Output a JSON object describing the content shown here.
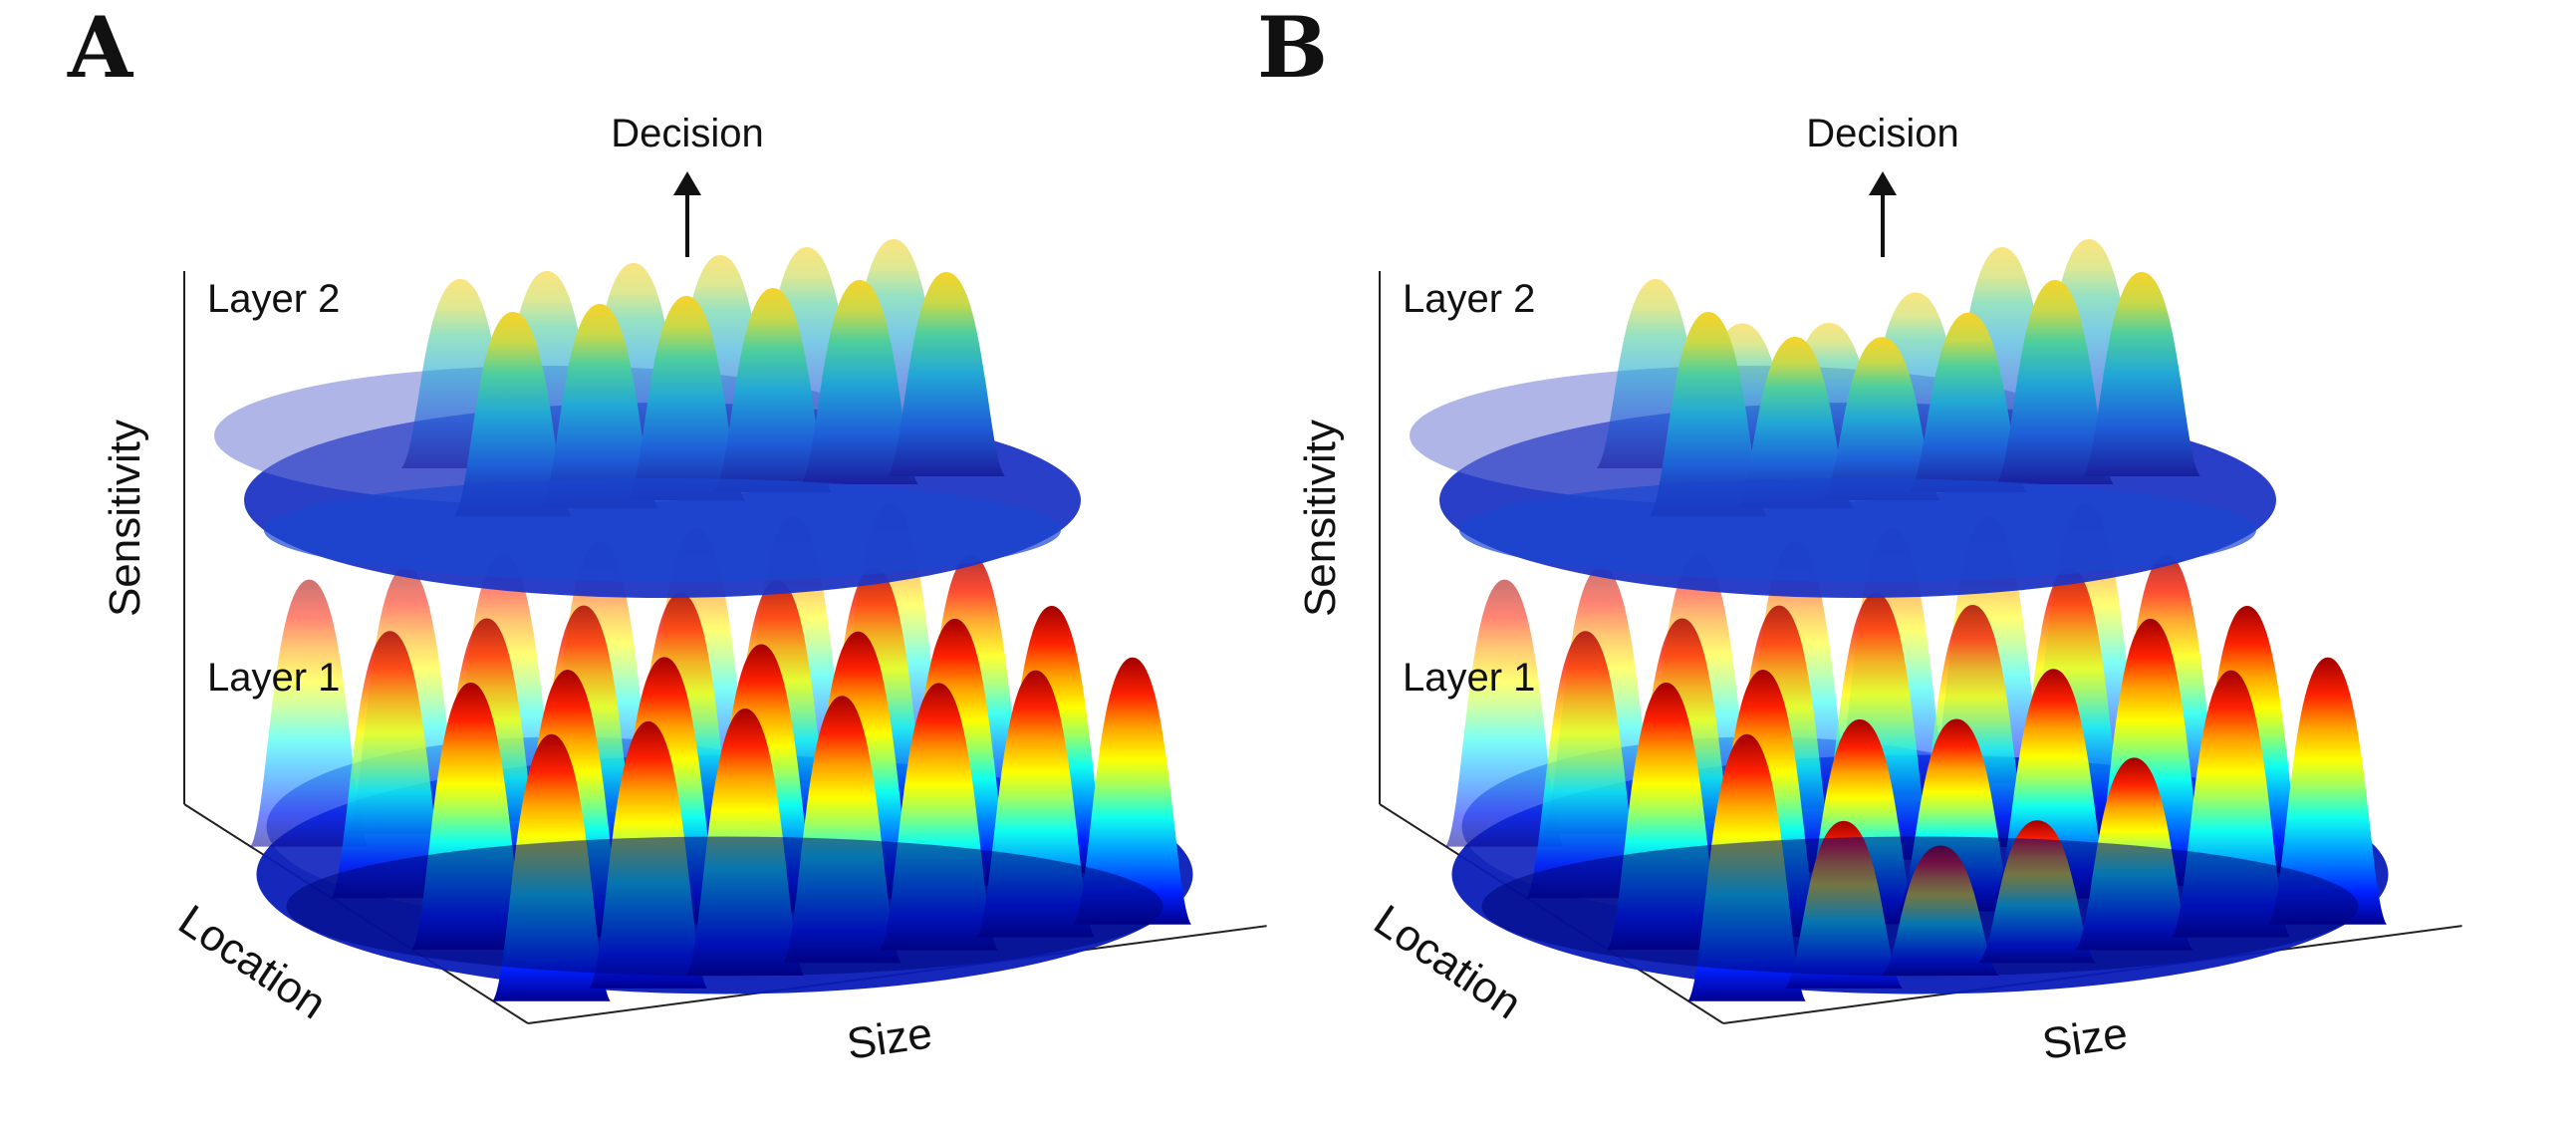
{
  "panels": [
    {
      "letter": "A",
      "decision": "Decision",
      "layer2": "Layer 2",
      "layer1": "Layer 1",
      "z_axis": "Sensitivity",
      "location_axis": "Location",
      "size_axis": "Size",
      "layer1_peaks": [
        1,
        1,
        1,
        1,
        1,
        1,
        1,
        1,
        1,
        1,
        1,
        1,
        1,
        1,
        1,
        1,
        1,
        1,
        1,
        1,
        1,
        1,
        1,
        1,
        1,
        1,
        1,
        1
      ],
      "layer2_peaks": [
        1,
        1,
        1,
        1,
        1,
        1,
        1,
        1,
        1,
        1,
        1,
        1
      ]
    },
    {
      "letter": "B",
      "decision": "Decision",
      "layer2": "Layer 2",
      "layer1": "Layer 1",
      "z_axis": "Sensitivity",
      "location_axis": "Location",
      "size_axis": "Size",
      "layer1_peaks": [
        1,
        1,
        1,
        1,
        1,
        1,
        1,
        1,
        1,
        1,
        1,
        0.9,
        1,
        1,
        1,
        1,
        0.75,
        0.7,
        0.85,
        1,
        1,
        1,
        0.6,
        0.45,
        0.5,
        0.7,
        1,
        1
      ],
      "layer2_peaks": [
        1,
        0.8,
        0.75,
        0.85,
        1,
        1,
        1,
        0.65,
        0.6,
        0.75,
        1,
        1
      ]
    }
  ],
  "colormap": [
    "#00008f",
    "#0020ff",
    "#00a0ff",
    "#10ffef",
    "#a0ff60",
    "#ffff00",
    "#ffa000",
    "#ff2000",
    "#a00000"
  ]
}
